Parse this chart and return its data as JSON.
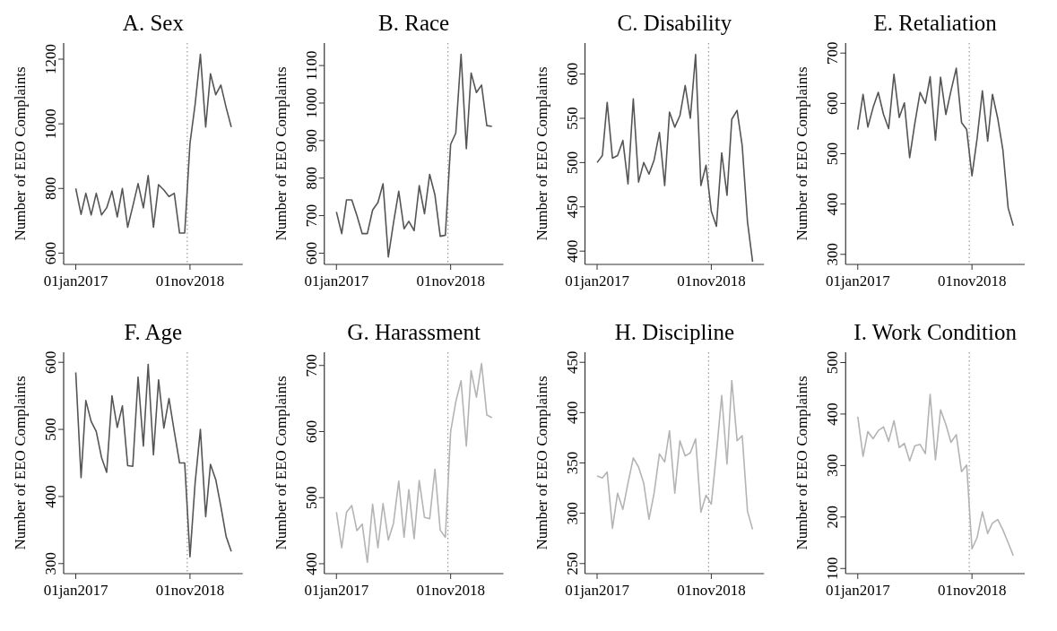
{
  "chart_data": [
    {
      "type": "line",
      "title": "A. Sex",
      "ylabel": "Number of EEO Complaints",
      "x": [
        "2017-01",
        "2017-02",
        "2017-03",
        "2017-04",
        "2017-05",
        "2017-06",
        "2017-07",
        "2017-08",
        "2017-09",
        "2017-10",
        "2017-11",
        "2017-12",
        "2018-01",
        "2018-02",
        "2018-03",
        "2018-04",
        "2018-05",
        "2018-06",
        "2018-07",
        "2018-08",
        "2018-09",
        "2018-10",
        "2018-11",
        "2018-12",
        "2019-01",
        "2019-02",
        "2019-03",
        "2019-04",
        "2019-05",
        "2019-06",
        "2019-07"
      ],
      "series": [
        {
          "color": "#555555",
          "values": [
            800,
            720,
            785,
            718,
            785,
            718,
            740,
            792,
            712,
            800,
            680,
            745,
            815,
            740,
            840,
            680,
            812,
            795,
            775,
            785,
            662,
            662,
            940,
            1060,
            1215,
            990,
            1155,
            1090,
            1120,
            1050,
            990
          ]
        }
      ],
      "xlim": [
        "2016-10-22",
        "2019-09-06"
      ],
      "xticks": [
        {
          "value": "2017-01-01",
          "label": "01jan2017"
        },
        {
          "value": "2018-11-01",
          "label": "01nov2018"
        }
      ],
      "ylim": [
        565,
        1250
      ],
      "yticks": [
        600,
        800,
        1000,
        1200
      ],
      "ref_lines": [
        {
          "axis": "x",
          "value": "2018-10-16",
          "color": "#999999",
          "line_style": "dotted"
        }
      ]
    },
    {
      "type": "line",
      "title": "B. Race",
      "ylabel": "Number of EEO Complaints",
      "x": [
        "2017-01",
        "2017-02",
        "2017-03",
        "2017-04",
        "2017-05",
        "2017-06",
        "2017-07",
        "2017-08",
        "2017-09",
        "2017-10",
        "2017-11",
        "2017-12",
        "2018-01",
        "2018-02",
        "2018-03",
        "2018-04",
        "2018-05",
        "2018-06",
        "2018-07",
        "2018-08",
        "2018-09",
        "2018-10",
        "2018-11",
        "2018-12",
        "2019-01",
        "2019-02",
        "2019-03",
        "2019-04",
        "2019-05",
        "2019-06",
        "2019-07"
      ],
      "series": [
        {
          "color": "#555555",
          "values": [
            710,
            652,
            742,
            742,
            700,
            652,
            652,
            715,
            735,
            785,
            590,
            680,
            765,
            665,
            685,
            660,
            780,
            705,
            810,
            755,
            645,
            648,
            890,
            920,
            1130,
            878,
            1080,
            1028,
            1048,
            940,
            938
          ]
        }
      ],
      "xlim": [
        "2016-10-22",
        "2019-09-06"
      ],
      "xticks": [
        {
          "value": "2017-01-01",
          "label": "01jan2017"
        },
        {
          "value": "2018-11-01",
          "label": "01nov2018"
        }
      ],
      "ylim": [
        570,
        1160
      ],
      "yticks": [
        600,
        700,
        800,
        900,
        1000,
        1100
      ],
      "ref_lines": [
        {
          "axis": "x",
          "value": "2018-10-16",
          "color": "#999999",
          "line_style": "dotted"
        }
      ]
    },
    {
      "type": "line",
      "title": "C. Disability",
      "ylabel": "Number of EEO Complaints",
      "x": [
        "2017-01",
        "2017-02",
        "2017-03",
        "2017-04",
        "2017-05",
        "2017-06",
        "2017-07",
        "2017-08",
        "2017-09",
        "2017-10",
        "2017-11",
        "2017-12",
        "2018-01",
        "2018-02",
        "2018-03",
        "2018-04",
        "2018-05",
        "2018-06",
        "2018-07",
        "2018-08",
        "2018-09",
        "2018-10",
        "2018-11",
        "2018-12",
        "2019-01",
        "2019-02",
        "2019-03",
        "2019-04",
        "2019-05",
        "2019-06",
        "2019-07"
      ],
      "series": [
        {
          "color": "#555555",
          "values": [
            500,
            508,
            568,
            505,
            508,
            525,
            476,
            572,
            478,
            500,
            487,
            503,
            534,
            474,
            557,
            540,
            553,
            587,
            550,
            622,
            474,
            497,
            445,
            428,
            511,
            463,
            549,
            559,
            519,
            433,
            388
          ]
        }
      ],
      "xlim": [
        "2016-10-22",
        "2019-09-06"
      ],
      "xticks": [
        {
          "value": "2017-01-01",
          "label": "01jan2017"
        },
        {
          "value": "2018-11-01",
          "label": "01nov2018"
        }
      ],
      "ylim": [
        385,
        635
      ],
      "yticks": [
        400,
        450,
        500,
        550,
        600
      ],
      "ref_lines": [
        {
          "axis": "x",
          "value": "2018-10-16",
          "color": "#999999",
          "line_style": "dotted"
        }
      ]
    },
    {
      "type": "line",
      "title": "E. Retaliation",
      "ylabel": "Number of EEO Complaints",
      "x": [
        "2017-01",
        "2017-02",
        "2017-03",
        "2017-04",
        "2017-05",
        "2017-06",
        "2017-07",
        "2017-08",
        "2017-09",
        "2017-10",
        "2017-11",
        "2017-12",
        "2018-01",
        "2018-02",
        "2018-03",
        "2018-04",
        "2018-05",
        "2018-06",
        "2018-07",
        "2018-08",
        "2018-09",
        "2018-10",
        "2018-11",
        "2018-12",
        "2019-01",
        "2019-02",
        "2019-03",
        "2019-04",
        "2019-05",
        "2019-06",
        "2019-07"
      ],
      "series": [
        {
          "color": "#555555",
          "values": [
            548,
            618,
            553,
            592,
            622,
            578,
            550,
            658,
            572,
            601,
            492,
            560,
            622,
            600,
            653,
            527,
            652,
            578,
            625,
            670,
            562,
            548,
            456,
            530,
            625,
            525,
            618,
            570,
            508,
            392,
            357
          ]
        }
      ],
      "xlim": [
        "2016-10-22",
        "2019-09-06"
      ],
      "xticks": [
        {
          "value": "2017-01-01",
          "label": "01jan2017"
        },
        {
          "value": "2018-11-01",
          "label": "01nov2018"
        }
      ],
      "ylim": [
        280,
        720
      ],
      "yticks": [
        300,
        400,
        500,
        600,
        700
      ],
      "ref_lines": [
        {
          "axis": "x",
          "value": "2018-10-16",
          "color": "#999999",
          "line_style": "dotted"
        }
      ]
    },
    {
      "type": "line",
      "title": "F. Age",
      "ylabel": "Number of EEO Complaints",
      "x": [
        "2017-01",
        "2017-02",
        "2017-03",
        "2017-04",
        "2017-05",
        "2017-06",
        "2017-07",
        "2017-08",
        "2017-09",
        "2017-10",
        "2017-11",
        "2017-12",
        "2018-01",
        "2018-02",
        "2018-03",
        "2018-04",
        "2018-05",
        "2018-06",
        "2018-07",
        "2018-08",
        "2018-09",
        "2018-10",
        "2018-11",
        "2018-12",
        "2019-01",
        "2019-02",
        "2019-03",
        "2019-04",
        "2019-05",
        "2019-06",
        "2019-07"
      ],
      "series": [
        {
          "color": "#555555",
          "values": [
            585,
            428,
            543,
            512,
            497,
            458,
            436,
            550,
            503,
            535,
            446,
            445,
            578,
            475,
            597,
            462,
            574,
            502,
            546,
            497,
            450,
            450,
            310,
            420,
            500,
            370,
            448,
            425,
            385,
            340,
            318
          ]
        }
      ],
      "xlim": [
        "2016-10-22",
        "2019-09-06"
      ],
      "xticks": [
        {
          "value": "2017-01-01",
          "label": "01jan2017"
        },
        {
          "value": "2018-11-01",
          "label": "01nov2018"
        }
      ],
      "ylim": [
        285,
        615
      ],
      "yticks": [
        300,
        400,
        500,
        600
      ],
      "ref_lines": [
        {
          "axis": "x",
          "value": "2018-10-16",
          "color": "#999999",
          "line_style": "dotted"
        }
      ]
    },
    {
      "type": "line",
      "title": "G. Harassment",
      "ylabel": "Number of EEO Complaints",
      "x": [
        "2017-01",
        "2017-02",
        "2017-03",
        "2017-04",
        "2017-05",
        "2017-06",
        "2017-07",
        "2017-08",
        "2017-09",
        "2017-10",
        "2017-11",
        "2017-12",
        "2018-01",
        "2018-02",
        "2018-03",
        "2018-04",
        "2018-05",
        "2018-06",
        "2018-07",
        "2018-08",
        "2018-09",
        "2018-10",
        "2018-11",
        "2018-12",
        "2019-01",
        "2019-02",
        "2019-03",
        "2019-04",
        "2019-05",
        "2019-06",
        "2019-07"
      ],
      "series": [
        {
          "color": "#b4b4b4",
          "values": [
            478,
            424,
            478,
            488,
            450,
            460,
            402,
            490,
            424,
            491,
            436,
            461,
            525,
            440,
            512,
            438,
            526,
            470,
            468,
            543,
            451,
            440,
            600,
            645,
            677,
            578,
            692,
            652,
            703,
            625,
            621
          ]
        }
      ],
      "xlim": [
        "2016-10-22",
        "2019-09-06"
      ],
      "xticks": [
        {
          "value": "2017-01-01",
          "label": "01jan2017"
        },
        {
          "value": "2018-11-01",
          "label": "01nov2018"
        }
      ],
      "ylim": [
        385,
        720
      ],
      "yticks": [
        400,
        500,
        600,
        700
      ],
      "ref_lines": [
        {
          "axis": "x",
          "value": "2018-10-16",
          "color": "#999999",
          "line_style": "dotted"
        }
      ]
    },
    {
      "type": "line",
      "title": "H. Discipline",
      "ylabel": "Number of EEO Complaints",
      "x": [
        "2017-01",
        "2017-02",
        "2017-03",
        "2017-04",
        "2017-05",
        "2017-06",
        "2017-07",
        "2017-08",
        "2017-09",
        "2017-10",
        "2017-11",
        "2017-12",
        "2018-01",
        "2018-02",
        "2018-03",
        "2018-04",
        "2018-05",
        "2018-06",
        "2018-07",
        "2018-08",
        "2018-09",
        "2018-10",
        "2018-11",
        "2018-12",
        "2019-01",
        "2019-02",
        "2019-03",
        "2019-04",
        "2019-05",
        "2019-06",
        "2019-07"
      ],
      "series": [
        {
          "color": "#b4b4b4",
          "values": [
            337,
            335,
            341,
            285,
            320,
            304,
            330,
            355,
            346,
            330,
            294,
            320,
            359,
            351,
            382,
            320,
            372,
            357,
            360,
            374,
            301,
            318,
            309,
            360,
            417,
            349,
            432,
            372,
            377,
            302,
            284
          ]
        }
      ],
      "xlim": [
        "2016-10-22",
        "2019-09-06"
      ],
      "xticks": [
        {
          "value": "2017-01-01",
          "label": "01jan2017"
        },
        {
          "value": "2018-11-01",
          "label": "01nov2018"
        }
      ],
      "ylim": [
        240,
        460
      ],
      "yticks": [
        250,
        300,
        350,
        400,
        450
      ],
      "ref_lines": [
        {
          "axis": "x",
          "value": "2018-10-16",
          "color": "#999999",
          "line_style": "dotted"
        }
      ]
    },
    {
      "type": "line",
      "title": "I. Work Condition",
      "ylabel": "Number of EEO Complaints",
      "x": [
        "2017-01",
        "2017-02",
        "2017-03",
        "2017-04",
        "2017-05",
        "2017-06",
        "2017-07",
        "2017-08",
        "2017-09",
        "2017-10",
        "2017-11",
        "2017-12",
        "2018-01",
        "2018-02",
        "2018-03",
        "2018-04",
        "2018-05",
        "2018-06",
        "2018-07",
        "2018-08",
        "2018-09",
        "2018-10",
        "2018-11",
        "2018-12",
        "2019-01",
        "2019-02",
        "2019-03",
        "2019-04",
        "2019-05",
        "2019-06",
        "2019-07"
      ],
      "series": [
        {
          "color": "#b4b4b4",
          "values": [
            395,
            318,
            366,
            352,
            368,
            375,
            347,
            387,
            335,
            343,
            309,
            338,
            341,
            323,
            438,
            311,
            408,
            380,
            345,
            360,
            288,
            301,
            138,
            160,
            210,
            168,
            188,
            195,
            175,
            150,
            125
          ]
        }
      ],
      "xlim": [
        "2016-10-22",
        "2019-09-06"
      ],
      "xticks": [
        {
          "value": "2017-01-01",
          "label": "01jan2017"
        },
        {
          "value": "2018-11-01",
          "label": "01nov2018"
        }
      ],
      "ylim": [
        90,
        520
      ],
      "yticks": [
        100,
        200,
        300,
        400,
        500
      ],
      "ref_lines": [
        {
          "axis": "x",
          "value": "2018-10-16",
          "color": "#999999",
          "line_style": "dotted"
        }
      ]
    }
  ]
}
